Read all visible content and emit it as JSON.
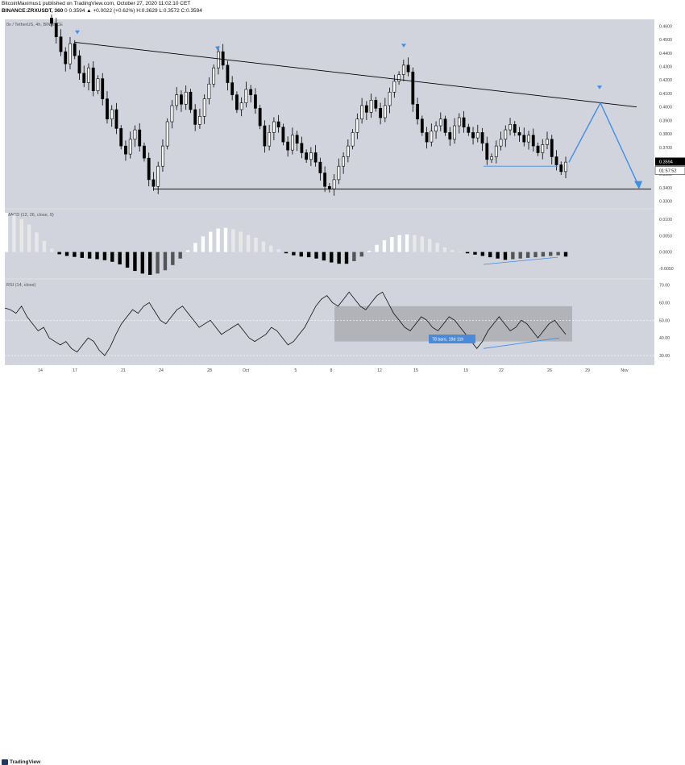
{
  "header": {
    "author_line": "BitcoinMaximus1 published on TradingView.com, October 27, 2020 11:02:10 CET",
    "author": "BitcoinMaximus1",
    "symbol": "BINANCE:ZRXUSDT, 360",
    "ohlc": "0 0.3594 ▲ +0.0022 (+0.62%) H:0.3629 L:0.3572 C:0.3594"
  },
  "panes": {
    "price_label": "0x / TetherUS, 4h, BINANCE",
    "macd_label": "MACD (12, 26, close, 9)",
    "rsi_label": "RSI (14, close)",
    "last_price_tag": "0.3594",
    "countdown_tag": "01:57:52",
    "bars_range_tooltip": "78 bars, 19d 11h"
  },
  "footer": {
    "logo_text": "TradingView"
  },
  "colors": {
    "pane_bg": "#d1d4dc",
    "candle": "#000000",
    "projection": "#3f8ee8",
    "trendline": "#000000",
    "macd_positive": "#ffffff",
    "macd_negative": "#000000",
    "rsi_box": "#a6a8ae"
  },
  "chart_data": [
    {
      "type": "candlestick",
      "title": "0x / TetherUS, 4h, BINANCE",
      "y_ticks": [
        "0.4600",
        "0.4500",
        "0.4400",
        "0.4300",
        "0.4200",
        "0.4100",
        "0.4000",
        "0.3900",
        "0.3800",
        "0.3700",
        "0.3600",
        "0.3500",
        "0.3400",
        "0.3300"
      ],
      "ylim": [
        0.325,
        0.465
      ],
      "x_ticks": [
        "14",
        "17",
        "21",
        "24",
        "28",
        "Oct",
        "5",
        "8",
        "12",
        "15",
        "19",
        "22",
        "26",
        "29",
        "Nov"
      ],
      "close_series": [
        0.462,
        0.452,
        0.441,
        0.432,
        0.447,
        0.438,
        0.425,
        0.418,
        0.429,
        0.412,
        0.421,
        0.406,
        0.391,
        0.398,
        0.384,
        0.371,
        0.365,
        0.376,
        0.383,
        0.371,
        0.362,
        0.346,
        0.341,
        0.356,
        0.371,
        0.389,
        0.401,
        0.409,
        0.402,
        0.411,
        0.398,
        0.387,
        0.393,
        0.406,
        0.417,
        0.429,
        0.441,
        0.431,
        0.418,
        0.409,
        0.398,
        0.403,
        0.413,
        0.409,
        0.399,
        0.386,
        0.371,
        0.381,
        0.389,
        0.385,
        0.374,
        0.368,
        0.379,
        0.373,
        0.366,
        0.361,
        0.366,
        0.359,
        0.351,
        0.341,
        0.339,
        0.346,
        0.356,
        0.363,
        0.371,
        0.381,
        0.391,
        0.401,
        0.396,
        0.405,
        0.399,
        0.392,
        0.401,
        0.411,
        0.419,
        0.424,
        0.431,
        0.426,
        0.402,
        0.391,
        0.381,
        0.374,
        0.382,
        0.386,
        0.391,
        0.381,
        0.376,
        0.386,
        0.392,
        0.385,
        0.381,
        0.377,
        0.381,
        0.373,
        0.361,
        0.363,
        0.371,
        0.376,
        0.383,
        0.387,
        0.381,
        0.379,
        0.374,
        0.379,
        0.371,
        0.366,
        0.372,
        0.376,
        0.363,
        0.357,
        0.352,
        0.359
      ],
      "last_price": 0.3594,
      "resistance_line": {
        "from": {
          "x": "17",
          "y": 0.448
        },
        "to": {
          "x": "Nov",
          "y": 0.4
        }
      },
      "support_line": {
        "y": 0.339
      },
      "projection_path": [
        {
          "y": 0.359
        },
        {
          "y": 0.403
        },
        {
          "y": 0.342
        }
      ],
      "markers": 5
    },
    {
      "type": "bar",
      "title": "MACD (12, 26, close, 9)",
      "y_ticks": [
        "0.0100",
        "0.0050",
        "0.0000",
        "-0.0050"
      ],
      "ylim": [
        -0.008,
        0.013
      ],
      "values": [
        0.012,
        0.0112,
        0.01,
        0.0084,
        0.006,
        0.0034,
        0.001,
        -0.0007,
        -0.0012,
        -0.0015,
        -0.0018,
        -0.002,
        -0.0022,
        -0.0025,
        -0.003,
        -0.0038,
        -0.0048,
        -0.0058,
        -0.0066,
        -0.007,
        -0.0066,
        -0.0056,
        -0.004,
        -0.002,
        0.0005,
        0.0028,
        0.0048,
        0.0062,
        0.0072,
        0.0074,
        0.007,
        0.0062,
        0.0052,
        0.0044,
        0.0032,
        0.002,
        0.0008,
        -0.0004,
        -0.001,
        -0.0014,
        -0.0016,
        -0.002,
        -0.0026,
        -0.0032,
        -0.0036,
        -0.0036,
        -0.0028,
        -0.0014,
        0.0004,
        0.0022,
        0.0036,
        0.0046,
        0.0052,
        0.0054,
        0.0052,
        0.0048,
        0.004,
        0.0028,
        0.0014,
        0.0006,
        0.0002,
        -0.0004,
        -0.0008,
        -0.0012,
        -0.0016,
        -0.002,
        -0.0024,
        -0.0022,
        -0.002,
        -0.0018,
        -0.0016,
        -0.0014,
        -0.0012,
        -0.001,
        -0.0014
      ]
    },
    {
      "type": "line",
      "title": "RSI (14, close)",
      "y_ticks": [
        "70.00",
        "60.00",
        "50.00",
        "40.00",
        "30.00"
      ],
      "ylim": [
        25,
        73
      ],
      "values": [
        57,
        56,
        54,
        58,
        52,
        48,
        44,
        46,
        40,
        38,
        36,
        38,
        34,
        32,
        36,
        40,
        38,
        33,
        30,
        35,
        42,
        48,
        52,
        56,
        54,
        58,
        60,
        55,
        50,
        48,
        52,
        56,
        58,
        54,
        50,
        46,
        48,
        50,
        46,
        42,
        44,
        46,
        48,
        44,
        40,
        38,
        40,
        42,
        46,
        44,
        40,
        36,
        38,
        42,
        46,
        52,
        58,
        62,
        64,
        60,
        58,
        62,
        66,
        62,
        58,
        56,
        60,
        64,
        66,
        60,
        54,
        50,
        46,
        44,
        48,
        52,
        50,
        46,
        44,
        48,
        52,
        50,
        46,
        42,
        38,
        34,
        38,
        44,
        48,
        52,
        48,
        44,
        46,
        50,
        48,
        44,
        40,
        44,
        48,
        50,
        46,
        42
      ],
      "highlight_range": [
        38,
        58
      ]
    }
  ]
}
